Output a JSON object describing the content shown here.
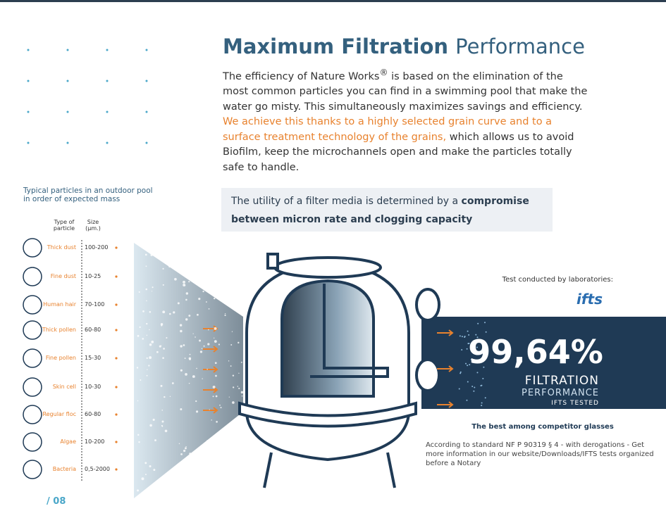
{
  "header": {
    "title_bold": "Maximum Filtration",
    "title_light": "Performance"
  },
  "intro": {
    "part1": "The efficiency of Nature Works",
    "reg": "®",
    "part2": " is based on the elimination of the most common particles you can find in a swimming pool that make the water go misty. This simultaneously maximizes savings and efficiency.",
    "highlight": "We achieve this thanks to a highly selected grain curve and to a surface treatment technology of the grains,",
    "part3": " which allows us to avoid Biofilm, keep the microchannels open and make the particles totally safe to handle."
  },
  "callout": {
    "text": "The utility of a filter media is determined by a ",
    "bold": "compromise between micron rate and clogging capacity"
  },
  "particles": {
    "caption": "Typical particles in an outdoor pool in order of expected mass",
    "col_type": "Type of particle",
    "col_size": "Size (µm.)",
    "rows": [
      [
        "Thick dust",
        "100-200"
      ],
      [
        "Fine dust",
        "10-25"
      ],
      [
        "Human hair",
        "70-100"
      ],
      [
        "Thick pollen",
        "60-80"
      ],
      [
        "Fine pollen",
        "15-30"
      ],
      [
        "Skin cell",
        "10-30"
      ],
      [
        "Regular floc",
        "60-80"
      ],
      [
        "Algae",
        "10-200"
      ],
      [
        "Bacteria",
        "0,5-2000"
      ]
    ]
  },
  "lab": {
    "caption": "Test conducted by laboratories:",
    "logo": "ifts"
  },
  "result": {
    "value": "99,64%",
    "line1": "FILTRATION",
    "line2": "PERFORMANCE",
    "line3": "IFTS TESTED"
  },
  "note": {
    "title": "The best among competitor glasses",
    "text": "According to standard NF P 90319 § 4 - with derogations - Get more information in our website/Downloads/IFTS tests organized before a Notary"
  },
  "footer": {
    "page": "/ 08"
  }
}
